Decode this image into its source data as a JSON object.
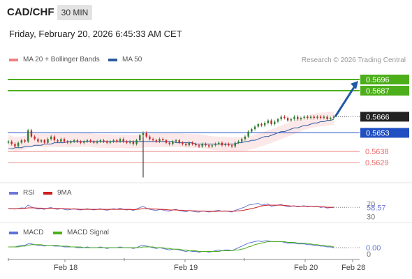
{
  "header": {
    "symbol": "CAD/CHF",
    "timeframe": "30 MIN",
    "datetime": "Friday, February 20, 2026 6:45:33 AM CET"
  },
  "legend": {
    "bollinger": "MA 20 + Bollinger Bands",
    "bollinger_color": "#f08080",
    "ma50": "MA 50",
    "ma50_color": "#2c5aa0",
    "research": "Research © 2026 Trading Central"
  },
  "colors": {
    "target": "#4caf1a",
    "pivot": "#1f4fc1",
    "support": "#e86a6a",
    "up_candle": "#2e7d32",
    "down_candle": "#c62828",
    "arrow": "#1f5aa8",
    "rsi": "#6f78d8",
    "rsi_ma": "#d01c1c",
    "macd": "#5b73d6",
    "macd_signal": "#4caf1a"
  },
  "chart_data": [
    {
      "type": "line",
      "name": "price",
      "x_ticks": [
        "Feb 18",
        "Feb 19",
        "Feb 20",
        "Feb 28"
      ],
      "ylim": [
        0.5615,
        0.5705
      ],
      "levels": [
        {
          "label": "0.5696",
          "value": 0.5696,
          "kind": "target"
        },
        {
          "label": "0.5687",
          "value": 0.5687,
          "kind": "target"
        },
        {
          "label": "0.5666",
          "value": 0.5666,
          "kind": "last"
        },
        {
          "label": "0.5653",
          "value": 0.5653,
          "kind": "pivot"
        },
        {
          "label": "0.5638",
          "value": 0.5638,
          "kind": "support"
        },
        {
          "label": "0.5629",
          "value": 0.5629,
          "kind": "support"
        }
      ],
      "close": [
        0.5646,
        0.5644,
        0.5642,
        0.5645,
        0.5647,
        0.5646,
        0.5655,
        0.565,
        0.5648,
        0.5646,
        0.5647,
        0.5645,
        0.5648,
        0.565,
        0.5647,
        0.5646,
        0.5648,
        0.5646,
        0.5645,
        0.5646,
        0.5647,
        0.5646,
        0.5645,
        0.5646,
        0.5647,
        0.5646,
        0.5645,
        0.5646,
        0.5647,
        0.5646,
        0.5645,
        0.5646,
        0.5647,
        0.5646,
        0.5648,
        0.5646,
        0.5645,
        0.5646,
        0.5644,
        0.5647,
        0.5651,
        0.5653,
        0.565,
        0.5648,
        0.5647,
        0.5646,
        0.5648,
        0.5647,
        0.5645,
        0.5644,
        0.5646,
        0.5647,
        0.5645,
        0.5644,
        0.5643,
        0.5645,
        0.5644,
        0.5643,
        0.5642,
        0.5644,
        0.5643,
        0.5642,
        0.5643,
        0.5644,
        0.5645,
        0.5643,
        0.5644,
        0.5643,
        0.5642,
        0.5645,
        0.5646,
        0.5648,
        0.565,
        0.5654,
        0.5656,
        0.5658,
        0.566,
        0.5659,
        0.5661,
        0.5663,
        0.566,
        0.5662,
        0.5664,
        0.5666,
        0.5665,
        0.5663,
        0.5664,
        0.5666,
        0.5664,
        0.5665,
        0.5666,
        0.5665,
        0.5666,
        0.5665,
        0.5666,
        0.5665,
        0.5666,
        0.5664,
        0.5665,
        0.5666
      ],
      "ma50": [
        0.564,
        0.564,
        0.5641,
        0.5641,
        0.5641,
        0.5642,
        0.5642,
        0.5642,
        0.5643,
        0.5643,
        0.5643,
        0.5644,
        0.5644,
        0.5644,
        0.5645,
        0.5645,
        0.5645,
        0.5645,
        0.5646,
        0.5646,
        0.5646,
        0.5646,
        0.5646,
        0.5646,
        0.5646,
        0.5646,
        0.5646,
        0.5646,
        0.5646,
        0.5646,
        0.5646,
        0.5646,
        0.5646,
        0.5646,
        0.5646,
        0.5646,
        0.5646,
        0.5646,
        0.5646,
        0.5646,
        0.5646,
        0.5646,
        0.5646,
        0.5646,
        0.5646,
        0.5646,
        0.5646,
        0.5646,
        0.5646,
        0.5646,
        0.5646,
        0.5645,
        0.5645,
        0.5645,
        0.5645,
        0.5645,
        0.5645,
        0.5644,
        0.5644,
        0.5644,
        0.5644,
        0.5644,
        0.5644,
        0.5644,
        0.5644,
        0.5644,
        0.5644,
        0.5644,
        0.5644,
        0.5644,
        0.5645,
        0.5645,
        0.5646,
        0.5646,
        0.5647,
        0.5647,
        0.5648,
        0.5649,
        0.565,
        0.565,
        0.5651,
        0.5652,
        0.5653,
        0.5654,
        0.5654,
        0.5655,
        0.5656,
        0.5657,
        0.5657,
        0.5658,
        0.5659,
        0.5659,
        0.566,
        0.5661,
        0.5661,
        0.5662,
        0.5662,
        0.5663,
        0.5663,
        0.5664
      ]
    },
    {
      "type": "line",
      "name": "RSI",
      "legend": [
        "RSI",
        "9MA"
      ],
      "ticks": [
        "70",
        "30"
      ],
      "last_value": "58.57",
      "ylim": [
        20,
        80
      ],
      "values": [
        55,
        54,
        53,
        55,
        57,
        56,
        66,
        60,
        56,
        53,
        54,
        52,
        56,
        58,
        54,
        52,
        55,
        52,
        50,
        52,
        54,
        51,
        50,
        52,
        54,
        52,
        50,
        52,
        54,
        51,
        49,
        52,
        54,
        52,
        56,
        52,
        50,
        52,
        48,
        53,
        58,
        62,
        56,
        52,
        50,
        48,
        52,
        50,
        47,
        46,
        50,
        52,
        48,
        46,
        44,
        48,
        46,
        44,
        43,
        47,
        45,
        43,
        45,
        47,
        49,
        45,
        47,
        45,
        43,
        49,
        52,
        56,
        60,
        66,
        68,
        70,
        72,
        66,
        68,
        70,
        62,
        64,
        66,
        68,
        64,
        60,
        62,
        64,
        60,
        62,
        64,
        60,
        62,
        60,
        62,
        58,
        60,
        56,
        58,
        58.57
      ],
      "ma": [
        54,
        54,
        54,
        54,
        55,
        55,
        57,
        57,
        57,
        56,
        56,
        55,
        55,
        56,
        55,
        55,
        55,
        54,
        54,
        53,
        53,
        53,
        52,
        52,
        52,
        52,
        52,
        52,
        52,
        52,
        52,
        52,
        52,
        52,
        52,
        52,
        52,
        52,
        51,
        52,
        53,
        54,
        54,
        54,
        53,
        53,
        52,
        52,
        51,
        50,
        50,
        50,
        49,
        49,
        48,
        48,
        47,
        47,
        46,
        46,
        46,
        45,
        45,
        45,
        46,
        46,
        46,
        46,
        45,
        46,
        47,
        48,
        50,
        52,
        55,
        57,
        60,
        63,
        65,
        66,
        66,
        66,
        66,
        66,
        65,
        64,
        63,
        63,
        62,
        62,
        62,
        62,
        62,
        61,
        61,
        60,
        60,
        59,
        59,
        59
      ]
    },
    {
      "type": "line",
      "name": "MACD",
      "legend": [
        "MACD",
        "MACD Signal"
      ],
      "ticks": [
        "0"
      ],
      "last_value": "0.00",
      "ylim": [
        -1.0,
        1.2
      ],
      "values": [
        0.1,
        0.1,
        0.1,
        0.2,
        0.3,
        0.3,
        0.5,
        0.5,
        0.4,
        0.3,
        0.3,
        0.2,
        0.3,
        0.3,
        0.2,
        0.2,
        0.2,
        0.1,
        0.1,
        0.1,
        0.1,
        0.0,
        0.0,
        0.0,
        0.1,
        0.0,
        0.0,
        0.0,
        0.1,
        0.0,
        -0.1,
        0.0,
        0.0,
        0.0,
        0.1,
        0.0,
        0.0,
        0.0,
        -0.1,
        0.0,
        0.2,
        0.3,
        0.2,
        0.1,
        0.0,
        -0.1,
        0.0,
        -0.1,
        -0.2,
        -0.3,
        -0.2,
        -0.2,
        -0.3,
        -0.4,
        -0.5,
        -0.4,
        -0.5,
        -0.5,
        -0.6,
        -0.5,
        -0.5,
        -0.6,
        -0.5,
        -0.4,
        -0.3,
        -0.4,
        -0.3,
        -0.3,
        -0.4,
        -0.2,
        0.0,
        0.2,
        0.4,
        0.6,
        0.7,
        0.8,
        0.9,
        0.8,
        0.9,
        0.9,
        0.8,
        0.8,
        0.8,
        0.8,
        0.7,
        0.6,
        0.6,
        0.6,
        0.5,
        0.5,
        0.5,
        0.4,
        0.4,
        0.3,
        0.3,
        0.2,
        0.2,
        0.1,
        0.1,
        0.0
      ],
      "signal": [
        0.1,
        0.1,
        0.1,
        0.1,
        0.2,
        0.2,
        0.3,
        0.4,
        0.4,
        0.4,
        0.4,
        0.3,
        0.3,
        0.3,
        0.3,
        0.3,
        0.2,
        0.2,
        0.2,
        0.1,
        0.1,
        0.1,
        0.1,
        0.0,
        0.0,
        0.0,
        0.0,
        0.0,
        0.0,
        0.0,
        0.0,
        0.0,
        0.0,
        0.0,
        0.0,
        0.0,
        0.0,
        0.0,
        0.0,
        0.0,
        0.0,
        0.1,
        0.1,
        0.1,
        0.1,
        0.0,
        0.0,
        0.0,
        -0.1,
        -0.1,
        -0.2,
        -0.2,
        -0.2,
        -0.3,
        -0.3,
        -0.4,
        -0.4,
        -0.4,
        -0.5,
        -0.5,
        -0.5,
        -0.5,
        -0.5,
        -0.5,
        -0.5,
        -0.4,
        -0.4,
        -0.4,
        -0.4,
        -0.3,
        -0.3,
        -0.2,
        -0.1,
        0.1,
        0.2,
        0.4,
        0.5,
        0.6,
        0.7,
        0.8,
        0.8,
        0.8,
        0.8,
        0.8,
        0.8,
        0.7,
        0.7,
        0.7,
        0.6,
        0.6,
        0.6,
        0.5,
        0.5,
        0.4,
        0.4,
        0.3,
        0.3,
        0.2,
        0.2,
        0.1
      ]
    }
  ]
}
